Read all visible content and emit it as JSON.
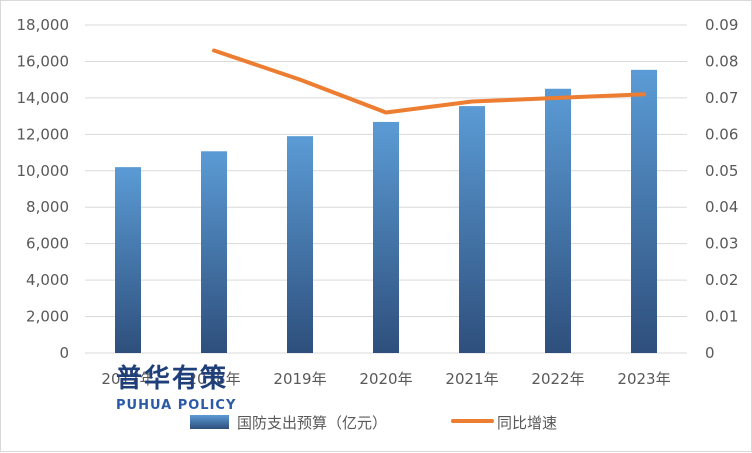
{
  "chart_data": {
    "type": "bar",
    "categories": [
      "2017年",
      "2018年",
      "2019年",
      "2020年",
      "2021年",
      "2022年",
      "2023年"
    ],
    "series": [
      {
        "name": "国防支出预算（亿元）",
        "kind": "bar",
        "axis": "left",
        "values": [
          10200,
          11070,
          11900,
          12680,
          13550,
          14500,
          15540
        ]
      },
      {
        "name": "同比增速",
        "kind": "line",
        "axis": "right",
        "values": [
          null,
          0.083,
          0.075,
          0.066,
          0.069,
          0.07,
          0.071
        ]
      }
    ],
    "y_left": {
      "min": 0,
      "max": 18000,
      "ticks": [
        "0",
        "2,000",
        "4,000",
        "6,000",
        "8,000",
        "10,000",
        "12,000",
        "14,000",
        "16,000",
        "18,000"
      ]
    },
    "y_right": {
      "min": 0,
      "max": 0.09,
      "ticks": [
        "0",
        "0.01",
        "0.02",
        "0.03",
        "0.04",
        "0.05",
        "0.06",
        "0.07",
        "0.08",
        "0.09"
      ]
    },
    "grid": true,
    "legend_position": "bottom",
    "colors": {
      "bar_top": "#5b9bd5",
      "bar_bottom": "#2e4f7c",
      "line": "#ed7d31",
      "grid": "#d9d9d9",
      "text": "#595959"
    }
  },
  "watermark": {
    "cn": "普华有策",
    "en": "PUHUA POLICY"
  }
}
